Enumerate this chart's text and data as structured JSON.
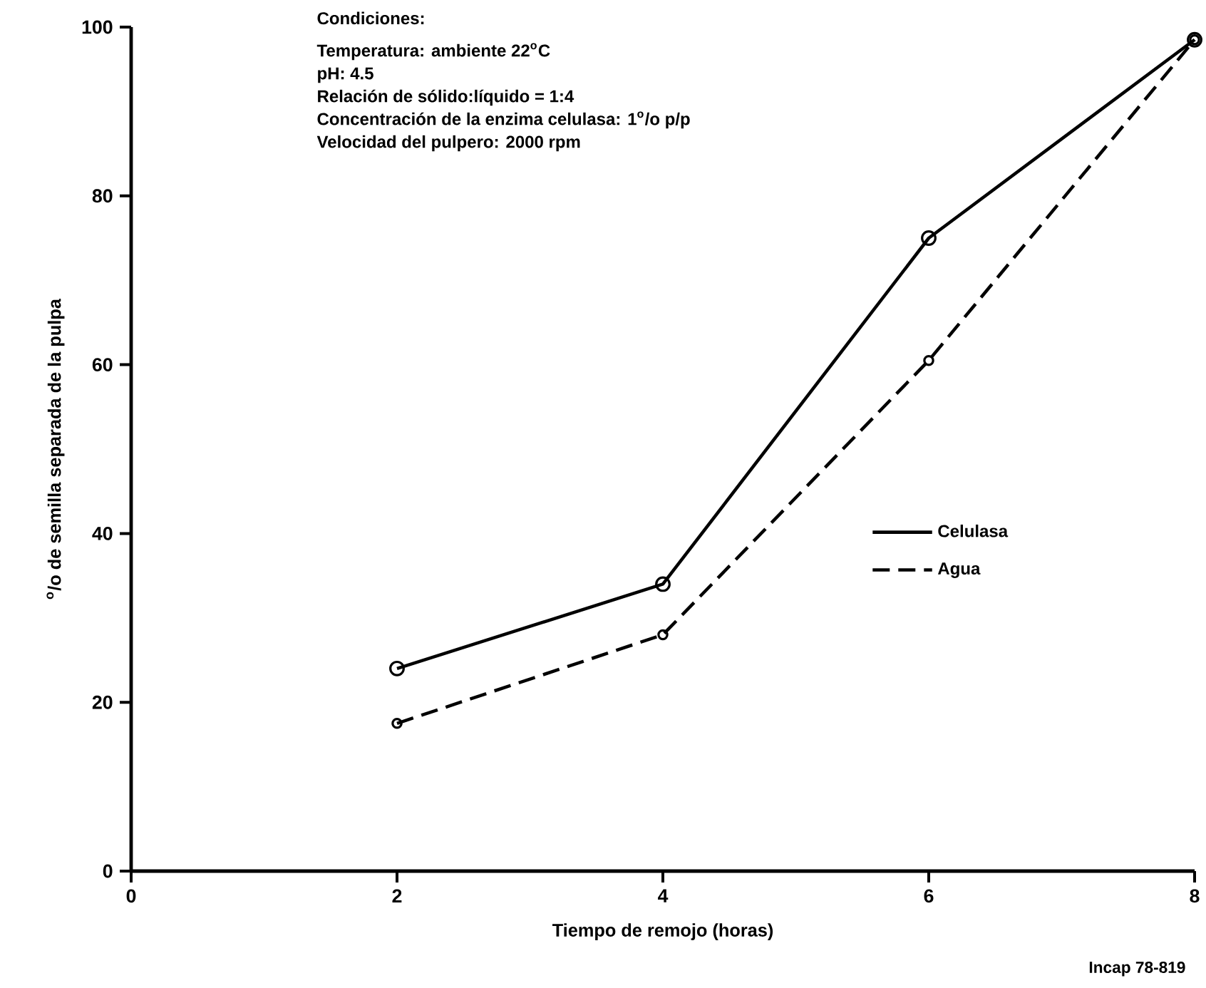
{
  "chart_data": {
    "type": "line",
    "xlabel": "Tiempo de remojo (horas)",
    "ylabel": "$^{o}$/o de semilla separada de la pulpa",
    "x": [
      2,
      4,
      6,
      8
    ],
    "series": [
      {
        "name": "Celulasa",
        "color": "#000000",
        "line_style": "solid",
        "values": [
          24,
          34,
          75,
          98.5
        ]
      },
      {
        "name": "Agua",
        "color": "#000000",
        "line_style": "dashed",
        "values": [
          17.5,
          28,
          60.5,
          98.5
        ]
      }
    ],
    "xlim": [
      0,
      8
    ],
    "xticks": [
      0,
      2,
      4,
      6,
      8
    ],
    "ylim": [
      0,
      100
    ],
    "yticks": [
      0,
      20,
      40,
      60,
      80,
      100
    ],
    "marker": "circle",
    "legend": "right",
    "grid": false,
    "annotations": [
      "Condiciones:",
      "Temperatura:  ambiente 22$^{o}$C",
      "pH:  4.5",
      "Relación de sólido:líquido = 1:4",
      "Concentración de la enzima celulasa:  1$^{o}$/o  p/p",
      "Velocidad del pulpero:  2000 rpm",
      "Incap 78-819"
    ]
  }
}
